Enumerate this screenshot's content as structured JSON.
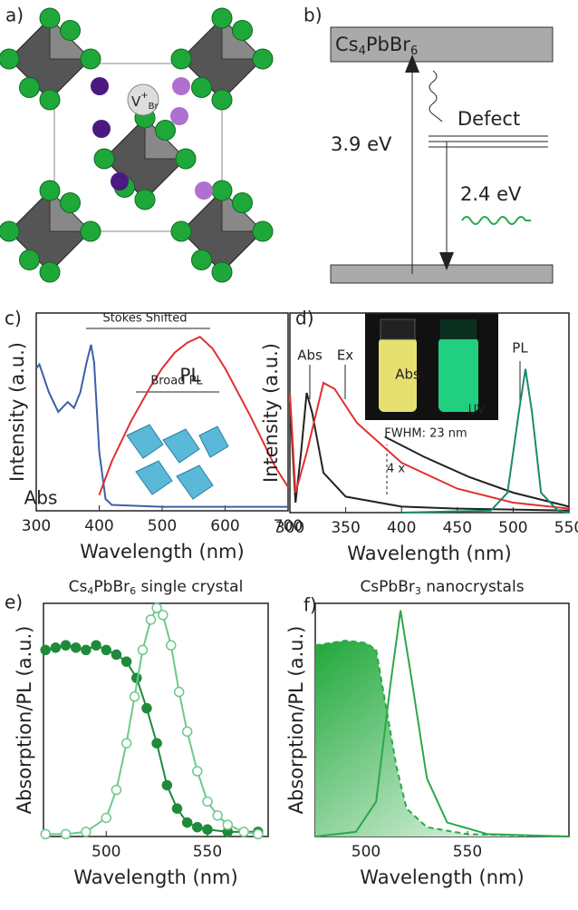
{
  "panels": {
    "a": {
      "label": "a)",
      "vacancy": [
        "V",
        "+",
        "Br"
      ]
    },
    "b": {
      "label": "b)",
      "formula": [
        "Cs",
        "4",
        "PbBr",
        "6"
      ],
      "defect": "Defect",
      "gap": "3.9 eV",
      "emission": "2.4 eV"
    }
  },
  "chart_data": [
    {
      "type": "line",
      "panel_label": "c)",
      "x_label": "Wavelength (nm)",
      "y_label": "Intensity (a.u.)",
      "xlim": [
        300,
        700
      ],
      "xticks": [
        300,
        400,
        500,
        600,
        700
      ],
      "ylim": [
        0,
        1
      ],
      "annotations": [
        "Stokes Shifted",
        "Broad PL"
      ],
      "series": [
        {
          "name": "Abs",
          "color": "#3d5fa5",
          "x": [
            300,
            305,
            320,
            335,
            350,
            360,
            370,
            380,
            387,
            392,
            400,
            410,
            420,
            500,
            600,
            700
          ],
          "values": [
            0.72,
            0.74,
            0.6,
            0.5,
            0.55,
            0.52,
            0.6,
            0.75,
            0.84,
            0.75,
            0.3,
            0.06,
            0.03,
            0.02,
            0.02,
            0.02
          ]
        },
        {
          "name": "PL",
          "color": "#e03030",
          "x": [
            400,
            420,
            450,
            480,
            500,
            520,
            540,
            560,
            580,
            600,
            620,
            640,
            660,
            680,
            700
          ],
          "values": [
            0.08,
            0.25,
            0.45,
            0.62,
            0.72,
            0.8,
            0.85,
            0.88,
            0.82,
            0.72,
            0.6,
            0.48,
            0.35,
            0.22,
            0.12
          ]
        }
      ]
    },
    {
      "type": "line",
      "panel_label": "d)",
      "x_label": "Wavelength (nm)",
      "y_label": "Intensity (a.u.)",
      "xlim": [
        300,
        550
      ],
      "xticks": [
        300,
        350,
        400,
        450,
        500,
        550
      ],
      "ylim": [
        0,
        1
      ],
      "annotations": [
        "UV",
        "FWHM: 23 nm",
        "4 x"
      ],
      "series": [
        {
          "name": "Abs",
          "color": "#222222",
          "x": [
            300,
            305,
            310,
            315,
            320,
            330,
            350,
            400,
            450,
            550
          ],
          "values": [
            0.55,
            0.05,
            0.3,
            0.6,
            0.5,
            0.2,
            0.08,
            0.03,
            0.02,
            0.01
          ]
        },
        {
          "name": "Ex",
          "color": "#e03030",
          "x": [
            300,
            305,
            315,
            330,
            340,
            360,
            400,
            450,
            500,
            550
          ],
          "values": [
            0.6,
            0.1,
            0.3,
            0.65,
            0.62,
            0.45,
            0.25,
            0.12,
            0.05,
            0.02
          ]
        },
        {
          "name": "Abs",
          "color": "#222222",
          "x": [
            385,
            420,
            460,
            500,
            550
          ],
          "values": [
            0.38,
            0.28,
            0.18,
            0.1,
            0.03
          ]
        },
        {
          "name": "PL",
          "color": "#1a8a6e",
          "x": [
            400,
            480,
            495,
            505,
            511,
            517,
            525,
            540,
            550
          ],
          "values": [
            0,
            0.01,
            0.1,
            0.5,
            0.72,
            0.5,
            0.1,
            0.01,
            0
          ]
        }
      ]
    },
    {
      "type": "line",
      "panel_label": "e)",
      "title": [
        "Cs",
        "4",
        "PbBr",
        "6",
        " single crystal"
      ],
      "x_label": "Wavelength (nm)",
      "y_label": "Absorption/PL (a.u.)",
      "xlim": [
        469,
        580
      ],
      "xticks": [
        500,
        550
      ],
      "ylim": [
        0,
        1
      ],
      "series": [
        {
          "name": "Abs",
          "color": "#1f8a3a",
          "marker": "filled",
          "x": [
            470,
            475,
            480,
            485,
            490,
            495,
            500,
            505,
            510,
            515,
            520,
            525,
            530,
            535,
            540,
            545,
            550,
            560,
            575
          ],
          "values": [
            0.8,
            0.81,
            0.82,
            0.81,
            0.8,
            0.82,
            0.8,
            0.78,
            0.75,
            0.68,
            0.55,
            0.4,
            0.22,
            0.12,
            0.06,
            0.04,
            0.03,
            0.02,
            0.02
          ]
        },
        {
          "name": "PL",
          "color": "#6cc98a",
          "marker": "open",
          "x": [
            470,
            480,
            490,
            500,
            505,
            510,
            514,
            518,
            522,
            525,
            528,
            532,
            536,
            540,
            545,
            550,
            555,
            560,
            568,
            575
          ],
          "values": [
            0.01,
            0.01,
            0.02,
            0.08,
            0.2,
            0.4,
            0.6,
            0.8,
            0.93,
            0.98,
            0.95,
            0.82,
            0.62,
            0.45,
            0.28,
            0.15,
            0.09,
            0.05,
            0.02,
            0.01
          ]
        }
      ]
    },
    {
      "type": "line",
      "panel_label": "f)",
      "title": [
        "CsPbBr",
        "3",
        " nanocrystals"
      ],
      "x_label": "Wavelength (nm)",
      "y_label": "Absorption/PL (a.u.)",
      "xlim": [
        475,
        600
      ],
      "xticks": [
        500,
        550
      ],
      "ylim": [
        0,
        1
      ],
      "series": [
        {
          "name": "Abs",
          "color": "#2aa84a",
          "dash": true,
          "area": true,
          "x": [
            475,
            490,
            500,
            505,
            510,
            515,
            520,
            530,
            550,
            600
          ],
          "values": [
            0.82,
            0.84,
            0.83,
            0.8,
            0.55,
            0.3,
            0.12,
            0.04,
            0.01,
            0
          ]
        },
        {
          "name": "PL",
          "color": "#2aa84a",
          "x": [
            475,
            495,
            505,
            512,
            517,
            522,
            530,
            540,
            560,
            600
          ],
          "values": [
            0,
            0.02,
            0.15,
            0.65,
            0.97,
            0.7,
            0.25,
            0.06,
            0.01,
            0
          ]
        }
      ]
    }
  ]
}
